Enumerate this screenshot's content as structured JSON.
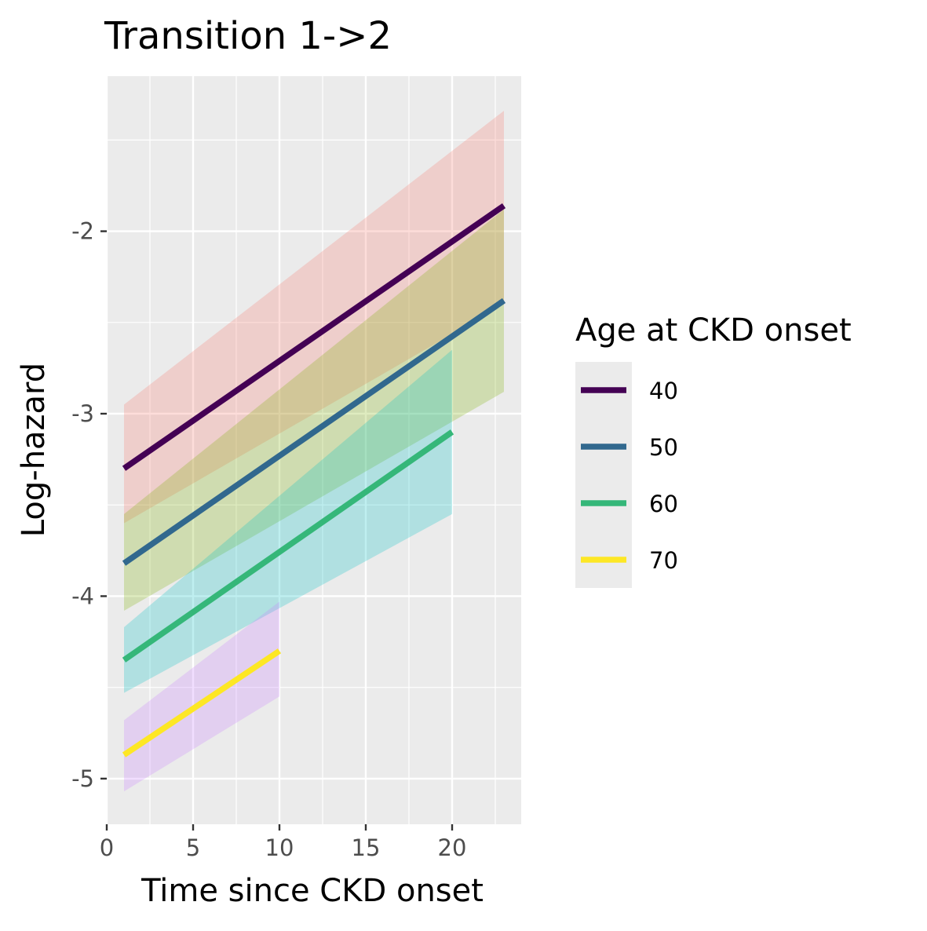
{
  "chart_data": {
    "type": "line",
    "title": "Transition 1->2",
    "xlabel": "Time since CKD onset",
    "ylabel": "Log-hazard",
    "xlim": [
      0,
      24
    ],
    "ylim": [
      -5.25,
      -1.15
    ],
    "x_ticks": [
      0,
      5,
      10,
      15,
      20
    ],
    "x_tick_labels": [
      "0",
      "5",
      "10",
      "15",
      "20"
    ],
    "y_ticks": [
      -5,
      -4,
      -3,
      -2
    ],
    "y_tick_labels": [
      "-5",
      "-4",
      "-3",
      "-2"
    ],
    "grid": true,
    "legend": {
      "title": "Age at CKD onset",
      "position": "right"
    },
    "series": [
      {
        "name": "40",
        "color": "#440154",
        "ribbon_color": "#F8766D",
        "x": [
          1,
          23
        ],
        "y": [
          -3.3,
          -1.86
        ],
        "lower": [
          -3.6,
          -2.4
        ],
        "upper": [
          -2.95,
          -1.34
        ]
      },
      {
        "name": "50",
        "color": "#31688E",
        "ribbon_color": "#7CAE00",
        "x": [
          1,
          23
        ],
        "y": [
          -3.82,
          -2.38
        ],
        "lower": [
          -4.08,
          -2.88
        ],
        "upper": [
          -3.55,
          -1.88
        ]
      },
      {
        "name": "60",
        "color": "#35B779",
        "ribbon_color": "#00BFC4",
        "x": [
          1,
          20
        ],
        "y": [
          -4.35,
          -3.1
        ],
        "lower": [
          -4.53,
          -3.55
        ],
        "upper": [
          -4.17,
          -2.65
        ]
      },
      {
        "name": "70",
        "color": "#FDE725",
        "ribbon_color": "#C77CFF",
        "x": [
          1,
          10
        ],
        "y": [
          -4.87,
          -4.3
        ],
        "lower": [
          -5.07,
          -4.55
        ],
        "upper": [
          -4.68,
          -4.03
        ]
      }
    ]
  }
}
